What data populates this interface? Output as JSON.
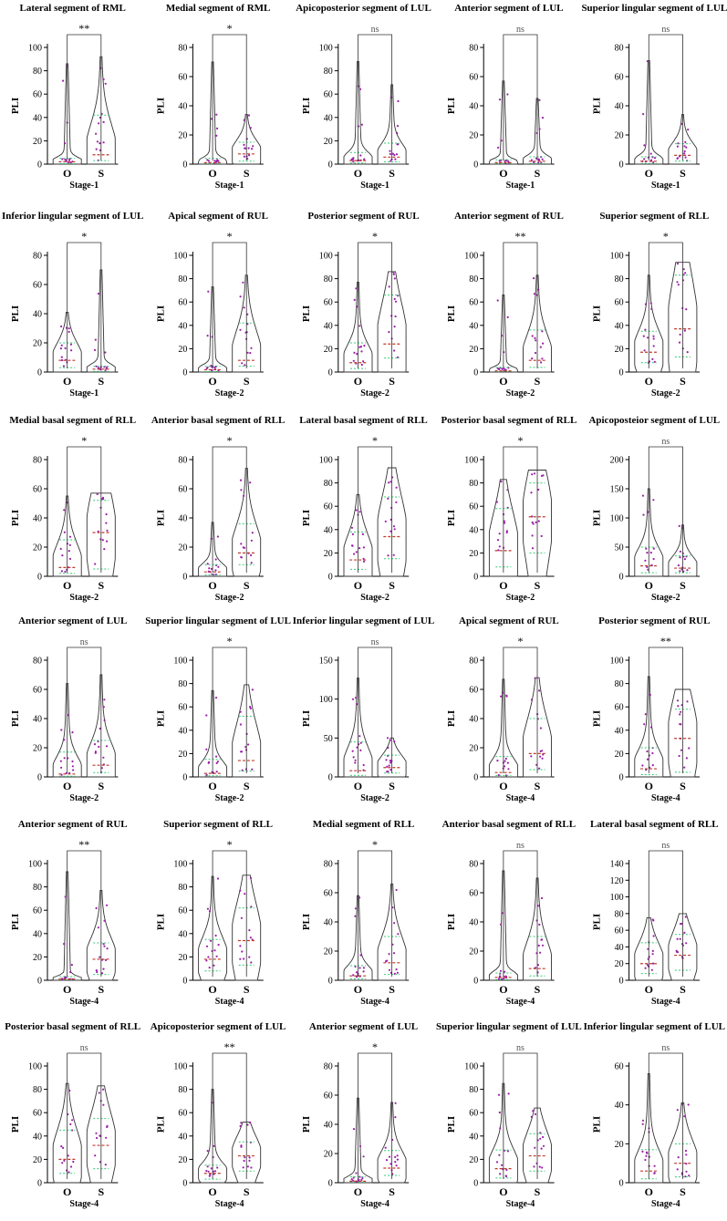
{
  "figure": {
    "colors": {
      "violin_stroke": "#333333",
      "median": "#c0392b",
      "quartile": "#2ecc71",
      "point": "#9b1fa8",
      "axis": "#000000"
    },
    "group_labels": [
      "O",
      "S"
    ]
  },
  "chart_data": [
    {
      "type": "violin",
      "title": "Lateral segment of RML",
      "ylabel": "PLI",
      "xlabel": "Stage-1",
      "categories": [
        "O",
        "S"
      ],
      "ylim": [
        0,
        100
      ],
      "yticks": [
        0,
        20,
        40,
        60,
        80,
        100
      ],
      "significance": "**",
      "series": [
        {
          "name": "O",
          "max": 86,
          "median": 2,
          "q1": 0.5,
          "q3": 5
        },
        {
          "name": "S",
          "max": 92,
          "median": 8,
          "q1": 3,
          "q3": 42
        }
      ]
    },
    {
      "type": "violin",
      "title": "Medial segment of RML",
      "ylabel": "PLI",
      "xlabel": "Stage-1",
      "categories": [
        "O",
        "S"
      ],
      "ylim": [
        0,
        80
      ],
      "yticks": [
        0,
        20,
        40,
        60,
        80
      ],
      "significance": "*",
      "series": [
        {
          "name": "O",
          "max": 70,
          "median": 1,
          "q1": 0.5,
          "q3": 4
        },
        {
          "name": "S",
          "max": 34,
          "median": 7,
          "q1": 2,
          "q3": 15
        }
      ]
    },
    {
      "type": "violin",
      "title": "Apicoposterior segment of LUL",
      "ylabel": "PLI",
      "xlabel": "Stage-1",
      "categories": [
        "O",
        "S"
      ],
      "ylim": [
        0,
        100
      ],
      "yticks": [
        0,
        20,
        40,
        60,
        80,
        100
      ],
      "significance": "ns",
      "series": [
        {
          "name": "O",
          "max": 88,
          "median": 3,
          "q1": 1,
          "q3": 10
        },
        {
          "name": "S",
          "max": 68,
          "median": 6,
          "q1": 2,
          "q3": 18
        }
      ]
    },
    {
      "type": "violin",
      "title": "Anterior segment of LUL",
      "ylabel": "PLI",
      "xlabel": "Stage-1",
      "categories": [
        "O",
        "S"
      ],
      "ylim": [
        0,
        80
      ],
      "yticks": [
        0,
        20,
        40,
        60,
        80
      ],
      "significance": "ns",
      "series": [
        {
          "name": "O",
          "max": 57,
          "median": 1,
          "q1": 0.5,
          "q3": 3
        },
        {
          "name": "S",
          "max": 45,
          "median": 2,
          "q1": 0.5,
          "q3": 5
        }
      ]
    },
    {
      "type": "violin",
      "title": "Superior lingular segment of LUL",
      "ylabel": "PLI",
      "xlabel": "Stage-1",
      "categories": [
        "O",
        "S"
      ],
      "ylim": [
        0,
        80
      ],
      "yticks": [
        0,
        20,
        40,
        60,
        80
      ],
      "significance": "ns",
      "series": [
        {
          "name": "O",
          "max": 71,
          "median": 2,
          "q1": 0.5,
          "q3": 5
        },
        {
          "name": "S",
          "max": 34,
          "median": 6,
          "q1": 2,
          "q3": 14
        }
      ]
    },
    {
      "type": "violin",
      "title": "Inferior lingular segment of LUL",
      "ylabel": "PLI",
      "xlabel": "Stage-1",
      "categories": [
        "O",
        "S"
      ],
      "ylim": [
        0,
        80
      ],
      "yticks": [
        0,
        20,
        40,
        60,
        80
      ],
      "significance": "*",
      "series": [
        {
          "name": "O",
          "max": 41,
          "median": 8,
          "q1": 3,
          "q3": 20
        },
        {
          "name": "S",
          "max": 70,
          "median": 2,
          "q1": 0.5,
          "q3": 4
        }
      ]
    },
    {
      "type": "violin",
      "title": "Apical segment of RUL",
      "ylabel": "PLI",
      "xlabel": "Stage-2",
      "categories": [
        "O",
        "S"
      ],
      "ylim": [
        0,
        100
      ],
      "yticks": [
        0,
        20,
        40,
        60,
        80,
        100
      ],
      "significance": "*",
      "series": [
        {
          "name": "O",
          "max": 73,
          "median": 2,
          "q1": 0.5,
          "q3": 5
        },
        {
          "name": "S",
          "max": 83,
          "median": 10,
          "q1": 5,
          "q3": 42
        }
      ]
    },
    {
      "type": "violin",
      "title": "Posterior segment of RUL",
      "ylabel": "PLI",
      "xlabel": "Stage-2",
      "categories": [
        "O",
        "S"
      ],
      "ylim": [
        0,
        100
      ],
      "yticks": [
        0,
        20,
        40,
        60,
        80,
        100
      ],
      "significance": "*",
      "series": [
        {
          "name": "O",
          "max": 77,
          "median": 8,
          "q1": 3,
          "q3": 25
        },
        {
          "name": "S",
          "max": 86,
          "median": 24,
          "q1": 12,
          "q3": 66
        }
      ]
    },
    {
      "type": "violin",
      "title": "Anterior segment of RUL",
      "ylabel": "PLI",
      "xlabel": "Stage-2",
      "categories": [
        "O",
        "S"
      ],
      "ylim": [
        0,
        100
      ],
      "yticks": [
        0,
        20,
        40,
        60,
        80,
        100
      ],
      "significance": "**",
      "series": [
        {
          "name": "O",
          "max": 66,
          "median": 1,
          "q1": 0.5,
          "q3": 4
        },
        {
          "name": "S",
          "max": 83,
          "median": 10,
          "q1": 4,
          "q3": 36
        }
      ]
    },
    {
      "type": "violin",
      "title": "Superior segment of RLL",
      "ylabel": "PLI",
      "xlabel": "Stage-2",
      "categories": [
        "O",
        "S"
      ],
      "ylim": [
        0,
        100
      ],
      "yticks": [
        0,
        20,
        40,
        60,
        80,
        100
      ],
      "significance": "*",
      "series": [
        {
          "name": "O",
          "max": 83,
          "median": 17,
          "q1": 8,
          "q3": 35
        },
        {
          "name": "S",
          "max": 94,
          "median": 37,
          "q1": 13,
          "q3": 83
        }
      ]
    },
    {
      "type": "violin",
      "title": "Medial basal segment of RLL",
      "ylabel": "PLI",
      "xlabel": "Stage-2",
      "categories": [
        "O",
        "S"
      ],
      "ylim": [
        0,
        80
      ],
      "yticks": [
        0,
        20,
        40,
        60,
        80
      ],
      "significance": "*",
      "series": [
        {
          "name": "O",
          "max": 55,
          "median": 6,
          "q1": 2,
          "q3": 25
        },
        {
          "name": "S",
          "max": 57,
          "median": 30,
          "q1": 5,
          "q3": 52
        }
      ]
    },
    {
      "type": "violin",
      "title": "Anterior basal segment of RLL",
      "ylabel": "PLI",
      "xlabel": "Stage-2",
      "categories": [
        "O",
        "S"
      ],
      "ylim": [
        0,
        80
      ],
      "yticks": [
        0,
        20,
        40,
        60,
        80
      ],
      "significance": "*",
      "series": [
        {
          "name": "O",
          "max": 37,
          "median": 3,
          "q1": 1,
          "q3": 8
        },
        {
          "name": "S",
          "max": 74,
          "median": 16,
          "q1": 8,
          "q3": 36
        }
      ]
    },
    {
      "type": "violin",
      "title": "Lateral basal segment of RLL",
      "ylabel": "PLI",
      "xlabel": "Stage-2",
      "categories": [
        "O",
        "S"
      ],
      "ylim": [
        0,
        100
      ],
      "yticks": [
        0,
        20,
        40,
        60,
        80,
        100
      ],
      "significance": "*",
      "series": [
        {
          "name": "O",
          "max": 70,
          "median": 14,
          "q1": 6,
          "q3": 38
        },
        {
          "name": "S",
          "max": 93,
          "median": 34,
          "q1": 15,
          "q3": 68
        }
      ]
    },
    {
      "type": "violin",
      "title": "Posterior basal segment of RLL",
      "ylabel": "PLI",
      "xlabel": "Stage-2",
      "categories": [
        "O",
        "S"
      ],
      "ylim": [
        0,
        100
      ],
      "yticks": [
        0,
        20,
        40,
        60,
        80,
        100
      ],
      "significance": "*",
      "series": [
        {
          "name": "O",
          "max": 83,
          "median": 22,
          "q1": 8,
          "q3": 58
        },
        {
          "name": "S",
          "max": 91,
          "median": 51,
          "q1": 20,
          "q3": 80
        }
      ]
    },
    {
      "type": "violin",
      "title": "Apicoposteior segment of LUL",
      "ylabel": "PLI",
      "xlabel": "Stage-2",
      "categories": [
        "O",
        "S"
      ],
      "ylim": [
        0,
        200
      ],
      "yticks": [
        0,
        50,
        100,
        150,
        200
      ],
      "significance": "ns",
      "series": [
        {
          "name": "O",
          "max": 150,
          "median": 18,
          "q1": 6,
          "q3": 50
        },
        {
          "name": "S",
          "max": 88,
          "median": 14,
          "q1": 6,
          "q3": 35
        }
      ]
    },
    {
      "type": "violin",
      "title": "Anterior segment of LUL",
      "ylabel": "PLI",
      "xlabel": "Stage-2",
      "categories": [
        "O",
        "S"
      ],
      "ylim": [
        0,
        80
      ],
      "yticks": [
        0,
        20,
        40,
        60,
        80
      ],
      "significance": "ns",
      "series": [
        {
          "name": "O",
          "max": 64,
          "median": 2,
          "q1": 0.5,
          "q3": 17
        },
        {
          "name": "S",
          "max": 70,
          "median": 8,
          "q1": 3,
          "q3": 25
        }
      ]
    },
    {
      "type": "violin",
      "title": "Superior lingular segment of LUL",
      "ylabel": "PLI",
      "xlabel": "Stage-2",
      "categories": [
        "O",
        "S"
      ],
      "ylim": [
        0,
        100
      ],
      "yticks": [
        0,
        20,
        40,
        60,
        80,
        100
      ],
      "significance": "*",
      "series": [
        {
          "name": "O",
          "max": 74,
          "median": 3,
          "q1": 1,
          "q3": 15
        },
        {
          "name": "S",
          "max": 79,
          "median": 14,
          "q1": 5,
          "q3": 52
        }
      ]
    },
    {
      "type": "violin",
      "title": "Inferior lingular segment of LUL",
      "ylabel": "PLI",
      "xlabel": "Stage-2",
      "categories": [
        "O",
        "S"
      ],
      "ylim": [
        0,
        150
      ],
      "yticks": [
        0,
        50,
        100,
        150
      ],
      "significance": "ns",
      "series": [
        {
          "name": "O",
          "max": 127,
          "median": 8,
          "q1": 2,
          "q3": 45
        },
        {
          "name": "S",
          "max": 50,
          "median": 12,
          "q1": 5,
          "q3": 28
        }
      ]
    },
    {
      "type": "violin",
      "title": "Apical segment of RUL",
      "ylabel": "PLI",
      "xlabel": "Stage-4",
      "categories": [
        "O",
        "S"
      ],
      "ylim": [
        0,
        80
      ],
      "yticks": [
        0,
        20,
        40,
        60,
        80
      ],
      "significance": "*",
      "series": [
        {
          "name": "O",
          "max": 67,
          "median": 3,
          "q1": 1,
          "q3": 14
        },
        {
          "name": "S",
          "max": 68,
          "median": 16,
          "q1": 5,
          "q3": 40
        }
      ]
    },
    {
      "type": "violin",
      "title": "Posterior segment of RUL",
      "ylabel": "PLI",
      "xlabel": "Stage-4",
      "categories": [
        "O",
        "S"
      ],
      "ylim": [
        0,
        100
      ],
      "yticks": [
        0,
        20,
        40,
        60,
        80,
        100
      ],
      "significance": "**",
      "series": [
        {
          "name": "O",
          "max": 86,
          "median": 7,
          "q1": 2,
          "q3": 25
        },
        {
          "name": "S",
          "max": 75,
          "median": 33,
          "q1": 4,
          "q3": 58
        }
      ]
    },
    {
      "type": "violin",
      "title": "Anterior segment of RUL",
      "ylabel": "PLI",
      "xlabel": "Stage-4",
      "categories": [
        "O",
        "S"
      ],
      "ylim": [
        0,
        100
      ],
      "yticks": [
        0,
        20,
        40,
        60,
        80,
        100
      ],
      "significance": "**",
      "series": [
        {
          "name": "O",
          "max": 93,
          "median": 1,
          "q1": 0.5,
          "q3": 3
        },
        {
          "name": "S",
          "max": 77,
          "median": 18,
          "q1": 5,
          "q3": 32
        }
      ]
    },
    {
      "type": "violin",
      "title": "Superior segment of RLL",
      "ylabel": "PLI",
      "xlabel": "Stage-4",
      "categories": [
        "O",
        "S"
      ],
      "ylim": [
        0,
        100
      ],
      "yticks": [
        0,
        20,
        40,
        60,
        80,
        100
      ],
      "significance": "*",
      "series": [
        {
          "name": "O",
          "max": 89,
          "median": 18,
          "q1": 8,
          "q3": 35
        },
        {
          "name": "S",
          "max": 90,
          "median": 34,
          "q1": 13,
          "q3": 62
        }
      ]
    },
    {
      "type": "violin",
      "title": "Medial segment of RLL",
      "ylabel": "PLI",
      "xlabel": "Stage-4",
      "categories": [
        "O",
        "S"
      ],
      "ylim": [
        0,
        80
      ],
      "yticks": [
        0,
        20,
        40,
        60,
        80
      ],
      "significance": "*",
      "series": [
        {
          "name": "O",
          "max": 58,
          "median": 3,
          "q1": 1,
          "q3": 10
        },
        {
          "name": "S",
          "max": 66,
          "median": 12,
          "q1": 4,
          "q3": 30
        }
      ]
    },
    {
      "type": "violin",
      "title": "Anterior basal segment of RLL",
      "ylabel": "PLI",
      "xlabel": "Stage-4",
      "categories": [
        "O",
        "S"
      ],
      "ylim": [
        0,
        80
      ],
      "yticks": [
        0,
        20,
        40,
        60,
        80
      ],
      "significance": "ns",
      "series": [
        {
          "name": "O",
          "max": 75,
          "median": 2,
          "q1": 0.5,
          "q3": 5
        },
        {
          "name": "S",
          "max": 70,
          "median": 8,
          "q1": 3,
          "q3": 30
        }
      ]
    },
    {
      "type": "violin",
      "title": "Lateral basal segment of RLL",
      "ylabel": "PLI",
      "xlabel": "Stage-4",
      "categories": [
        "O",
        "S"
      ],
      "ylim": [
        0,
        140
      ],
      "yticks": [
        0,
        20,
        40,
        60,
        80,
        100,
        120,
        140
      ],
      "significance": "ns",
      "series": [
        {
          "name": "O",
          "max": 75,
          "median": 20,
          "q1": 8,
          "q3": 45
        },
        {
          "name": "S",
          "max": 80,
          "median": 30,
          "q1": 12,
          "q3": 55
        }
      ]
    },
    {
      "type": "violin",
      "title": "Posterior basal segment of RLL",
      "ylabel": "PLI",
      "xlabel": "Stage-4",
      "categories": [
        "O",
        "S"
      ],
      "ylim": [
        0,
        100
      ],
      "yticks": [
        0,
        20,
        40,
        60,
        80,
        100
      ],
      "significance": "ns",
      "series": [
        {
          "name": "O",
          "max": 85,
          "median": 20,
          "q1": 8,
          "q3": 45
        },
        {
          "name": "S",
          "max": 83,
          "median": 32,
          "q1": 12,
          "q3": 55
        }
      ]
    },
    {
      "type": "violin",
      "title": "Apicoposterior segment of LUL",
      "ylabel": "PLI",
      "xlabel": "Stage-4",
      "categories": [
        "O",
        "S"
      ],
      "ylim": [
        0,
        100
      ],
      "yticks": [
        0,
        20,
        40,
        60,
        80,
        100
      ],
      "significance": "**",
      "series": [
        {
          "name": "O",
          "max": 80,
          "median": 8,
          "q1": 3,
          "q3": 15
        },
        {
          "name": "S",
          "max": 52,
          "median": 23,
          "q1": 10,
          "q3": 35
        }
      ]
    },
    {
      "type": "violin",
      "title": "Anterior segment of LUL",
      "ylabel": "PLI",
      "xlabel": "Stage-4",
      "categories": [
        "O",
        "S"
      ],
      "ylim": [
        0,
        80
      ],
      "yticks": [
        0,
        20,
        40,
        60,
        80
      ],
      "significance": "*",
      "series": [
        {
          "name": "O",
          "max": 58,
          "median": 1,
          "q1": 0.5,
          "q3": 4
        },
        {
          "name": "S",
          "max": 55,
          "median": 10,
          "q1": 5,
          "q3": 22
        }
      ]
    },
    {
      "type": "violin",
      "title": "Superior lingular segment of LUL",
      "ylabel": "PLI",
      "xlabel": "Stage-4",
      "categories": [
        "O",
        "S"
      ],
      "ylim": [
        0,
        100
      ],
      "yticks": [
        0,
        20,
        40,
        60,
        80,
        100
      ],
      "significance": "ns",
      "series": [
        {
          "name": "O",
          "max": 85,
          "median": 12,
          "q1": 4,
          "q3": 28
        },
        {
          "name": "S",
          "max": 64,
          "median": 23,
          "q1": 10,
          "q3": 42
        }
      ]
    },
    {
      "type": "violin",
      "title": "Inferior lingular segment of LUL",
      "ylabel": "PLI",
      "xlabel": "Stage-4",
      "categories": [
        "O",
        "S"
      ],
      "ylim": [
        0,
        60
      ],
      "yticks": [
        0,
        20,
        40,
        60
      ],
      "significance": "ns",
      "series": [
        {
          "name": "O",
          "max": 56,
          "median": 6,
          "q1": 2,
          "q3": 17
        },
        {
          "name": "S",
          "max": 41,
          "median": 10,
          "q1": 3,
          "q3": 20
        }
      ]
    }
  ]
}
